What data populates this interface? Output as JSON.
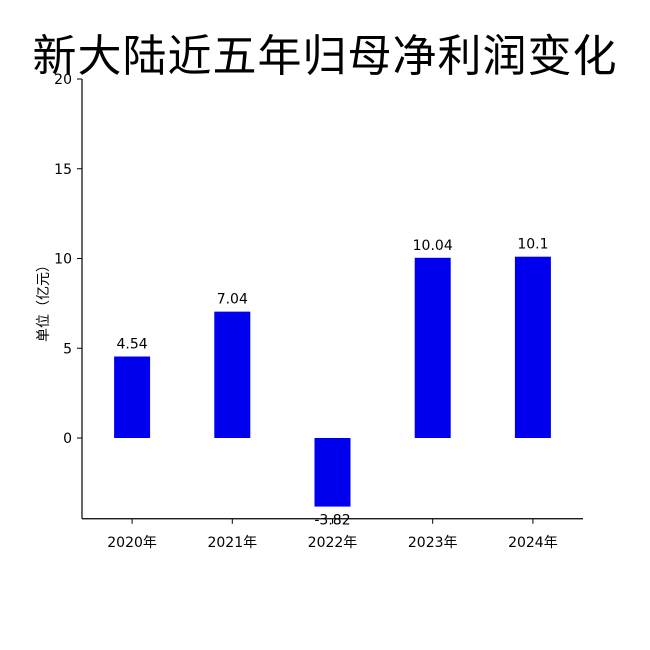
{
  "chart_data": {
    "type": "bar",
    "title": "新大陆近五年归母净利润变化",
    "categories": [
      "2020年",
      "2021年",
      "2022年",
      "2023年",
      "2024年"
    ],
    "values": [
      4.54,
      7.04,
      -3.82,
      10.04,
      10.1
    ],
    "value_labels": [
      "4.54",
      "7.04",
      "-3.82",
      "10.04",
      "10.1"
    ],
    "ylabel": "单位（亿元）",
    "ylim": [
      -4.5,
      20
    ],
    "yticks": [
      0,
      5,
      10,
      15,
      20
    ],
    "bar_color": "#0000ee",
    "grid": false
  }
}
